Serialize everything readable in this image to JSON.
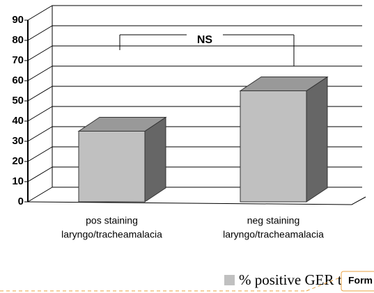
{
  "chart_data": {
    "type": "bar3d",
    "categories": [
      [
        "pos staining",
        "laryngo/tracheamalacia"
      ],
      [
        "neg staining",
        "laryngo/tracheamalacia"
      ]
    ],
    "series": [
      {
        "name": "% positive GER tests",
        "color": "#c0c0c0",
        "values": [
          35,
          55
        ]
      }
    ],
    "ylim": [
      0,
      90
    ],
    "yticks": [
      0,
      10,
      20,
      30,
      40,
      50,
      60,
      70,
      80,
      90
    ],
    "grid": true,
    "annotation": "NS",
    "legend": "bottom"
  },
  "button": "Form"
}
